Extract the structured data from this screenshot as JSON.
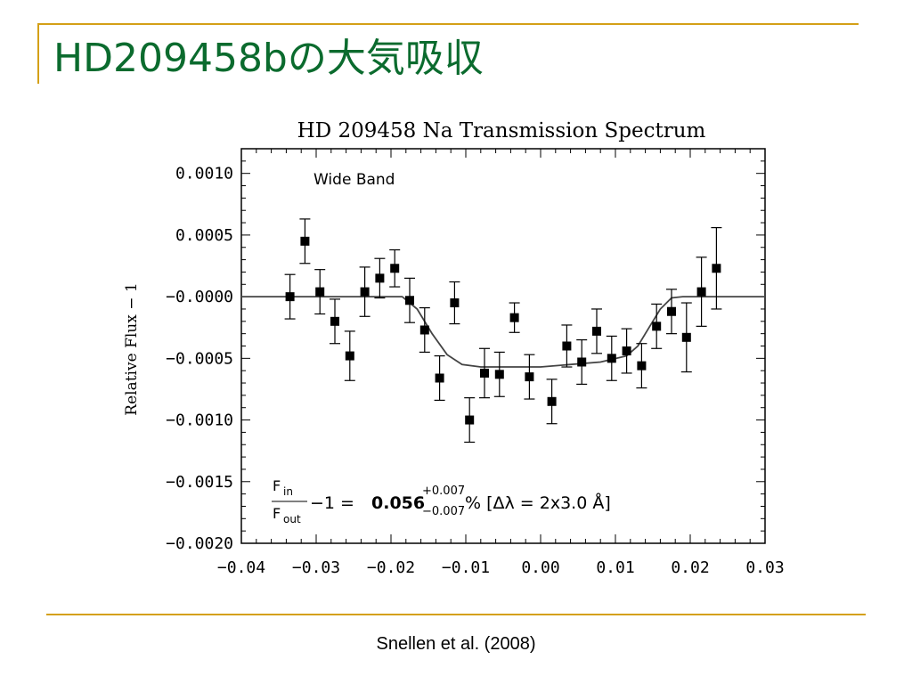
{
  "slide": {
    "title": "HD209458bの大気吸収",
    "caption": "Snellen et al. (2008)",
    "accent_color": "#d4a017",
    "title_color": "#0b6b2e"
  },
  "chart_data": {
    "type": "scatter",
    "title": "HD 209458 Na Transmission Spectrum",
    "ylabel": "Relative Flux − 1",
    "xlabel": "",
    "xlim": [
      -0.04,
      0.03
    ],
    "ylim": [
      -0.002,
      0.0012
    ],
    "xticks": [
      -0.04,
      -0.03,
      -0.02,
      -0.01,
      0.0,
      0.01,
      0.02,
      0.03
    ],
    "xtick_labels": [
      "−0.04",
      "−0.03",
      "−0.02",
      "−0.01",
      "0.00",
      "0.01",
      "0.02",
      "0.03"
    ],
    "yticks": [
      0.001,
      0.0005,
      0.0,
      -0.0005,
      -0.001,
      -0.0015,
      -0.002
    ],
    "ytick_labels": [
      "0.0010",
      "0.0005",
      "−0.0000",
      "−0.0005",
      "−0.0010",
      "−0.0015",
      "−0.0020"
    ],
    "annotation": "Wide Band",
    "formula": {
      "numerator": "F",
      "numerator_sub": "in",
      "denominator": "F",
      "denominator_sub": "out",
      "middle": "−1 = ",
      "value": "0.056",
      "plus": "+0.007",
      "minus": "−0.007",
      "suffix": " % [Δλ = 2x3.0 Å]"
    },
    "grid": false,
    "series": [
      {
        "marker": "square",
        "x": [
          -0.0335,
          -0.0315,
          -0.0295,
          -0.0275,
          -0.0255,
          -0.0235,
          -0.0215,
          -0.0195,
          -0.0175,
          -0.0155,
          -0.0135,
          -0.0115,
          -0.0095,
          -0.0075,
          -0.0055,
          -0.0035,
          -0.0015,
          0.0015,
          0.0035,
          0.0055,
          0.0075,
          0.0095,
          0.0115,
          0.0135,
          0.0155,
          0.0175,
          0.0195,
          0.0215,
          0.0235
        ],
        "y": [
          0.0,
          0.00045,
          4e-05,
          -0.0002,
          -0.00048,
          4e-05,
          0.00015,
          0.00023,
          -3e-05,
          -0.00027,
          -0.00066,
          -5e-05,
          -0.001,
          -0.00062,
          -0.00063,
          -0.00017,
          -0.00065,
          -0.00085,
          -0.0004,
          -0.00053,
          -0.00028,
          -0.0005,
          -0.00044,
          -0.00056,
          -0.00024,
          -0.00012,
          -0.00033,
          4e-05,
          0.00023
        ],
        "yerr": [
          0.00018,
          0.00018,
          0.00018,
          0.00018,
          0.0002,
          0.0002,
          0.00016,
          0.00015,
          0.00018,
          0.00018,
          0.00018,
          0.00017,
          0.00018,
          0.0002,
          0.00018,
          0.00012,
          0.00018,
          0.00018,
          0.00017,
          0.00018,
          0.00018,
          0.00018,
          0.00018,
          0.00018,
          0.00018,
          0.00018,
          0.00028,
          0.00028,
          0.00033
        ]
      },
      {
        "type": "line",
        "x": [
          -0.04,
          -0.0185,
          -0.0165,
          -0.0145,
          -0.0125,
          -0.0105,
          -0.008,
          0.0,
          0.008,
          0.0115,
          0.013,
          0.0145,
          0.016,
          0.0175,
          0.019,
          0.03
        ],
        "y": [
          0.0,
          0.0,
          -0.0001,
          -0.0003,
          -0.00047,
          -0.00055,
          -0.00057,
          -0.00057,
          -0.00053,
          -0.00048,
          -0.0004,
          -0.00025,
          -0.0001,
          -1e-05,
          0.0,
          0.0
        ]
      }
    ]
  }
}
